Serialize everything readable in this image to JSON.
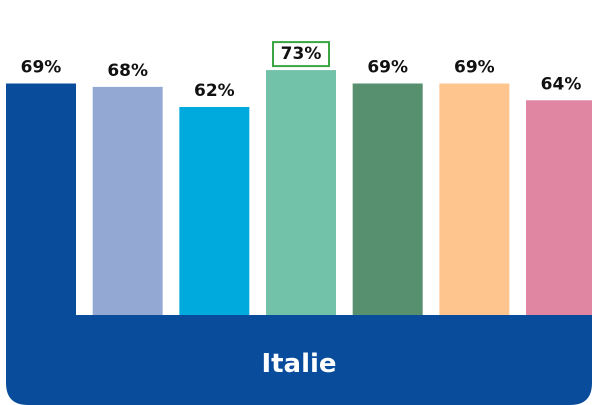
{
  "chart_data": {
    "type": "bar",
    "category": "Italie",
    "values": [
      69,
      68,
      62,
      73,
      69,
      69,
      64
    ],
    "value_labels": [
      "69%",
      "68%",
      "62%",
      "73%",
      "69%",
      "69%",
      "64%"
    ],
    "colors": [
      "#0A4C9C",
      "#93A9D3",
      "#00AADD",
      "#72C1A9",
      "#56906F",
      "#FFC58F",
      "#E085A2"
    ],
    "highlight_index": 3,
    "highlight_color": "#3BA641",
    "title": "",
    "xlabel": "",
    "ylabel": ""
  }
}
